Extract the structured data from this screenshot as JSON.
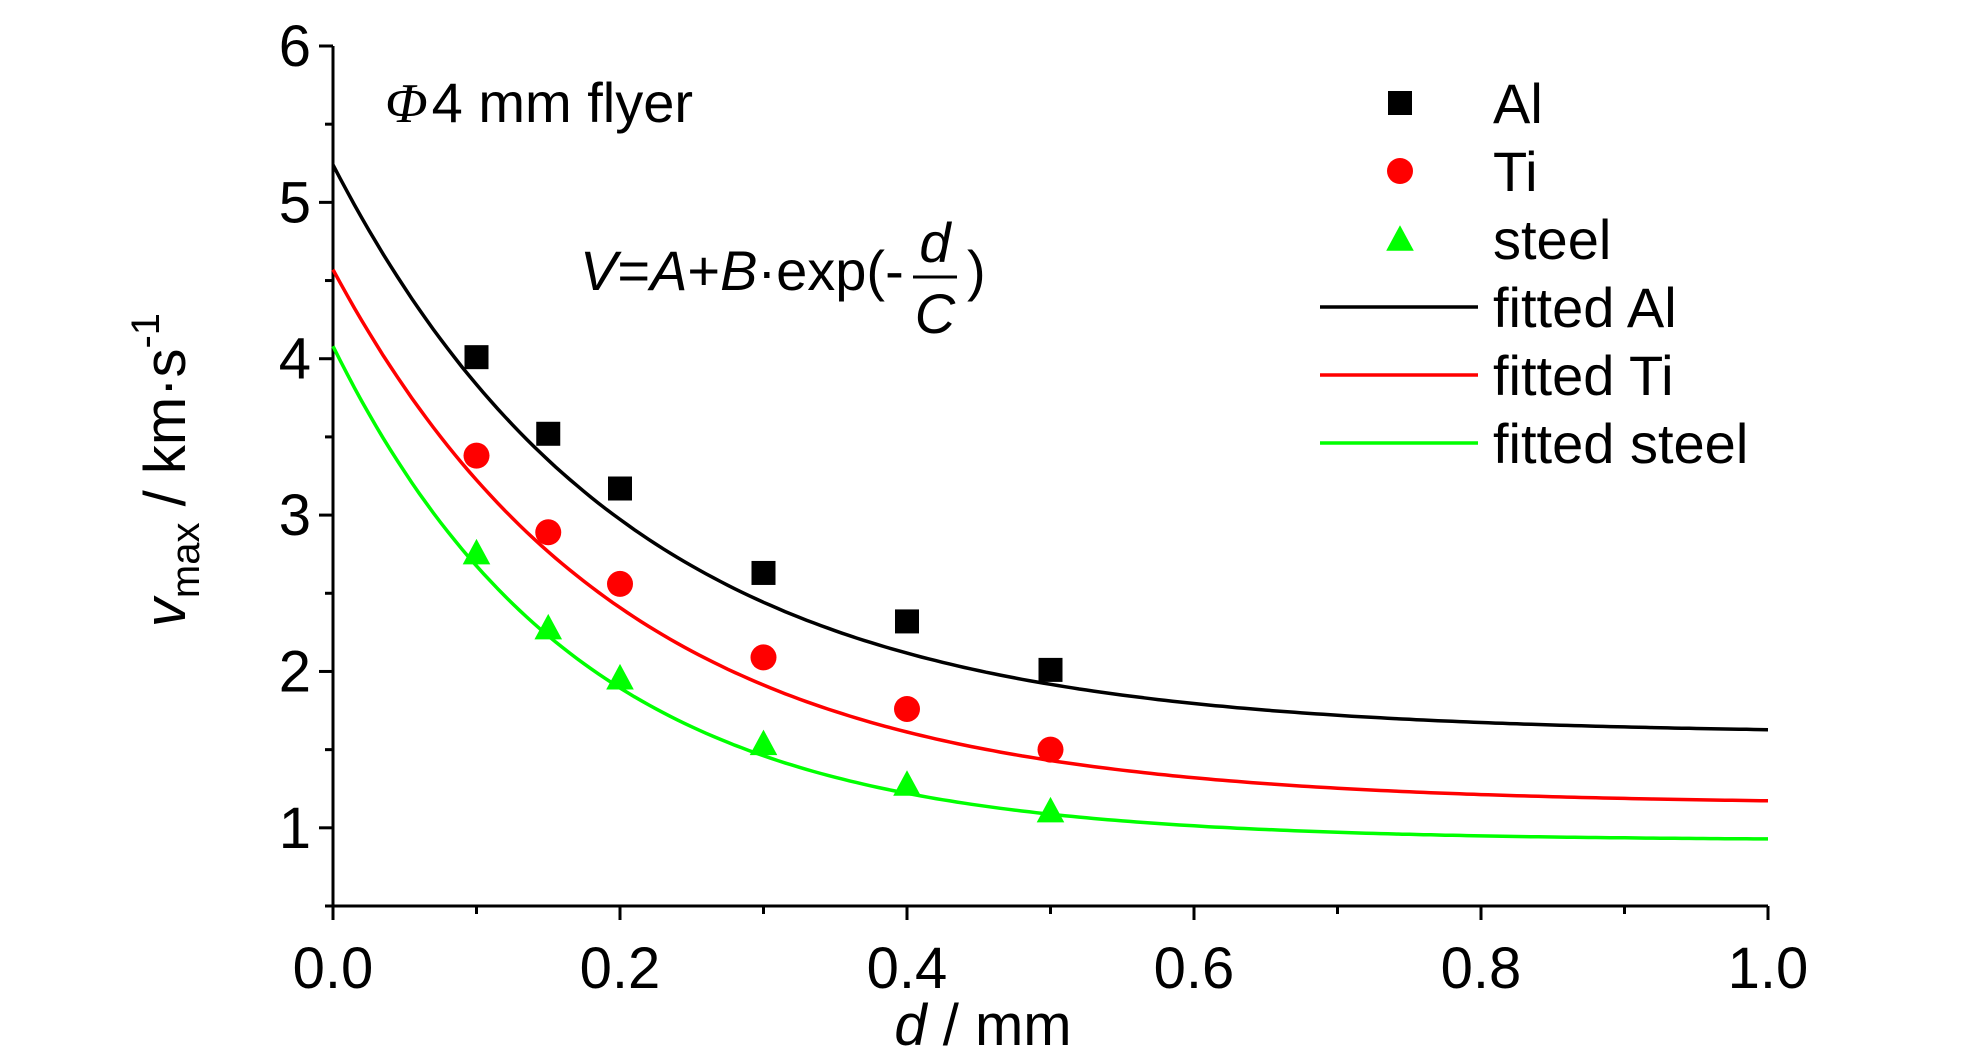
{
  "chart_data": {
    "type": "scatter",
    "xlabel": {
      "var": "d",
      "unit": " / mm"
    },
    "ylabel": {
      "var": "v",
      "sub": "max",
      "unit": " / km·s",
      "sup": "-1"
    },
    "xlim": [
      0.0,
      1.0
    ],
    "ylim": [
      0.5,
      6
    ],
    "xticks": [
      "0.0",
      "0.2",
      "0.4",
      "0.6",
      "0.8",
      "1.0"
    ],
    "yticks": [
      "1",
      "2",
      "3",
      "4",
      "5",
      "6"
    ],
    "annotation_flyer": {
      "phi": "Φ",
      "text": "4 mm flyer"
    },
    "annotation_formula": {
      "lhs": "V",
      "eq": "=",
      "A": "A",
      "plus": "+",
      "B": "B",
      "rest": "·exp(-",
      "num": "d",
      "den": "C",
      "close": ")"
    },
    "legend_position": "top-right",
    "series": [
      {
        "name": "Al",
        "marker": "square",
        "color": "#000000",
        "x": [
          0.1,
          0.15,
          0.2,
          0.3,
          0.4,
          0.5
        ],
        "y": [
          4.01,
          3.52,
          3.17,
          2.63,
          2.32,
          2.01
        ]
      },
      {
        "name": "Ti",
        "marker": "circle",
        "color": "#ff0000",
        "x": [
          0.1,
          0.15,
          0.2,
          0.3,
          0.4,
          0.5
        ],
        "y": [
          3.38,
          2.89,
          2.56,
          2.09,
          1.76,
          1.5
        ]
      },
      {
        "name": "steel",
        "marker": "triangle",
        "color": "#00ff00",
        "x": [
          0.1,
          0.15,
          0.2,
          0.3,
          0.4,
          0.5
        ],
        "y": [
          2.76,
          2.28,
          1.96,
          1.54,
          1.28,
          1.11
        ]
      }
    ],
    "fits": [
      {
        "name": "fitted Al",
        "color": "#000000",
        "A": 1.6,
        "B": 3.64,
        "C": 0.205
      },
      {
        "name": "fitted Ti",
        "color": "#ff0000",
        "A": 1.15,
        "B": 3.42,
        "C": 0.2
      },
      {
        "name": "fitted steel",
        "color": "#00ff00",
        "A": 0.92,
        "B": 3.16,
        "C": 0.17
      }
    ]
  }
}
